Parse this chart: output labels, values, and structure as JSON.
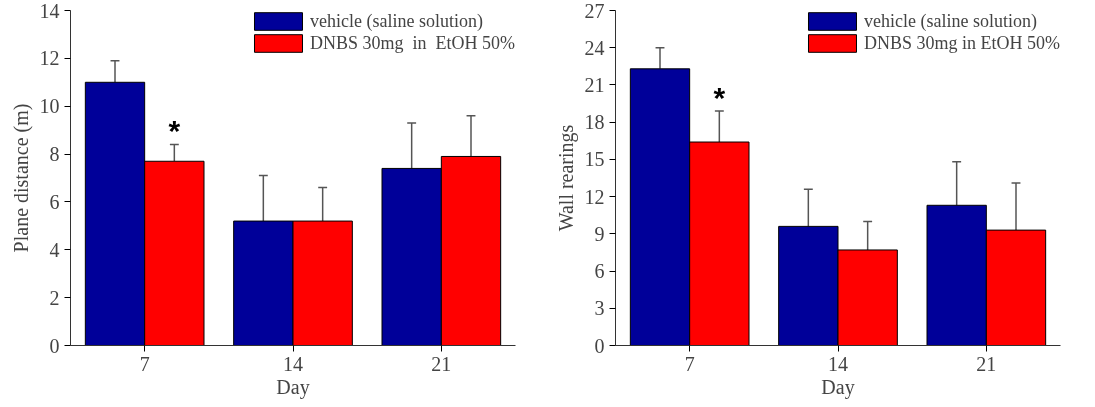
{
  "chart_data": [
    {
      "type": "bar",
      "categories": [
        "7",
        "14",
        "21"
      ],
      "xlabel": "Day",
      "ylabel": "Plane distance (m)",
      "ylim": [
        0,
        14
      ],
      "yticks": [
        0,
        2,
        4,
        6,
        8,
        10,
        12,
        14
      ],
      "grid": false,
      "legend": "top right",
      "series": [
        {
          "name": "vehicle (saline solution)",
          "color": "#000099",
          "values": [
            11.0,
            5.2,
            7.4
          ],
          "errors": [
            [
              11.0,
              11.9
            ],
            [
              5.2,
              7.1
            ],
            [
              7.4,
              9.3
            ]
          ]
        },
        {
          "name": "DNBS 30mg  in  EtOH 50%",
          "color": "#ff0000",
          "values": [
            7.7,
            5.2,
            7.9
          ],
          "errors": [
            [
              7.7,
              8.4
            ],
            [
              5.2,
              6.6
            ],
            [
              7.9,
              9.6
            ]
          ]
        }
      ],
      "annotations": [
        {
          "text": "*",
          "x": "7",
          "y": 9.0
        }
      ]
    },
    {
      "type": "bar",
      "categories": [
        "7",
        "14",
        "21"
      ],
      "xlabel": "Day",
      "ylabel": "Wall rearings",
      "ylim": [
        0,
        27
      ],
      "yticks": [
        0,
        3,
        6,
        9,
        12,
        15,
        18,
        21,
        24,
        27
      ],
      "grid": false,
      "legend": "top right",
      "series": [
        {
          "name": "vehicle (saline solution)",
          "color": "#000099",
          "values": [
            22.3,
            9.6,
            11.3
          ],
          "errors": [
            [
              22.3,
              24.0
            ],
            [
              9.6,
              12.6
            ],
            [
              11.3,
              14.8
            ]
          ]
        },
        {
          "name": "DNBS 30mg in EtOH 50%",
          "color": "#ff0000",
          "values": [
            16.4,
            7.7,
            9.3
          ],
          "errors": [
            [
              16.4,
              18.9
            ],
            [
              7.7,
              10.0
            ],
            [
              9.3,
              13.1
            ]
          ]
        }
      ],
      "annotations": [
        {
          "text": "*",
          "x": "7",
          "y": 20.0
        }
      ]
    }
  ]
}
